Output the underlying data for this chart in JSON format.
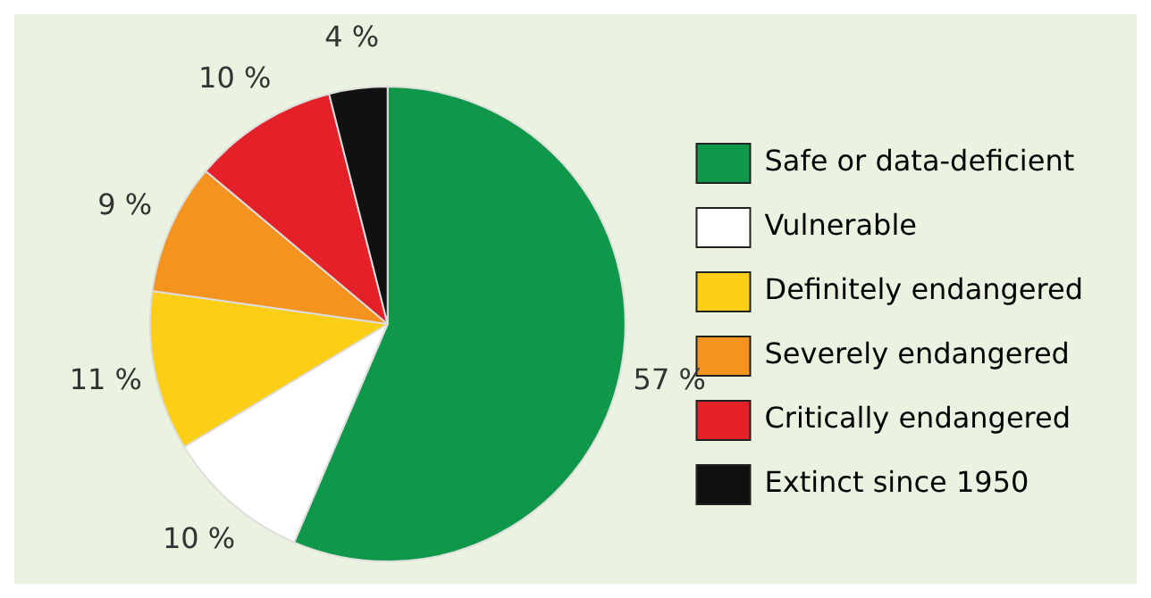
{
  "chart_data": {
    "type": "pie",
    "categories": [
      "Safe or data-deficient",
      "Vulnerable",
      "Definitely endangered",
      "Severely endangered",
      "Critically endangered",
      "Extinct since 1950"
    ],
    "values": [
      57,
      10,
      11,
      9,
      10,
      4
    ],
    "colors": [
      "#10984a",
      "#ffffff",
      "#fccf16",
      "#f4941f",
      "#e42129",
      "#111111"
    ],
    "value_labels": [
      "57 %",
      "10 %",
      "11 %",
      "9 %",
      "10 %",
      "4 %"
    ],
    "legend": "right"
  }
}
